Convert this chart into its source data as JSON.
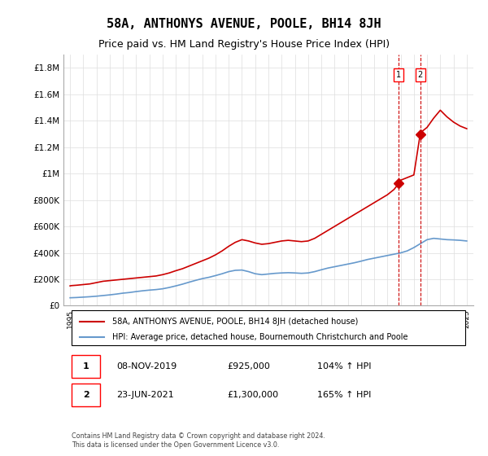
{
  "title": "58A, ANTHONYS AVENUE, POOLE, BH14 8JH",
  "subtitle": "Price paid vs. HM Land Registry's House Price Index (HPI)",
  "title_fontsize": 11,
  "subtitle_fontsize": 9,
  "ylabel_fontsize": 8,
  "xlabel_fontsize": 7.5,
  "ylim": [
    0,
    1900000
  ],
  "xlim_start": 1995,
  "xlim_end": 2026,
  "yticks": [
    0,
    200000,
    400000,
    600000,
    800000,
    1000000,
    1200000,
    1400000,
    1600000,
    1800000
  ],
  "ytick_labels": [
    "£0",
    "£200K",
    "£400K",
    "£600K",
    "£800K",
    "£1M",
    "£1.2M",
    "£1.4M",
    "£1.6M",
    "£1.8M"
  ],
  "xticks": [
    1995,
    1996,
    1997,
    1998,
    1999,
    2000,
    2001,
    2002,
    2003,
    2004,
    2005,
    2006,
    2007,
    2008,
    2009,
    2010,
    2011,
    2012,
    2013,
    2014,
    2015,
    2016,
    2017,
    2018,
    2019,
    2020,
    2021,
    2022,
    2023,
    2024,
    2025
  ],
  "red_color": "#cc0000",
  "blue_color": "#6699cc",
  "dashed_color": "#cc0000",
  "legend_box_color": "#000000",
  "background_color": "#ffffff",
  "grid_color": "#dddddd",
  "transaction1_date": "08-NOV-2019",
  "transaction1_price": "£925,000",
  "transaction1_hpi": "104% ↑ HPI",
  "transaction1_year": 2019.86,
  "transaction1_value": 925000,
  "transaction2_date": "23-JUN-2021",
  "transaction2_price": "£1,300,000",
  "transaction2_hpi": "165% ↑ HPI",
  "transaction2_year": 2021.48,
  "transaction2_value": 1300000,
  "legend_label_red": "58A, ANTHONYS AVENUE, POOLE, BH14 8JH (detached house)",
  "legend_label_blue": "HPI: Average price, detached house, Bournemouth Christchurch and Poole",
  "footnote": "Contains HM Land Registry data © Crown copyright and database right 2024.\nThis data is licensed under the Open Government Licence v3.0.",
  "red_x": [
    1995.0,
    1995.1,
    1995.5,
    1996.0,
    1996.5,
    1997.0,
    1997.5,
    1998.0,
    1998.5,
    1999.0,
    1999.5,
    2000.0,
    2000.5,
    2001.0,
    2001.5,
    2002.0,
    2002.5,
    2003.0,
    2003.5,
    2004.0,
    2004.5,
    2005.0,
    2005.5,
    2006.0,
    2006.5,
    2007.0,
    2007.5,
    2008.0,
    2008.5,
    2009.0,
    2009.5,
    2010.0,
    2010.5,
    2011.0,
    2011.5,
    2012.0,
    2012.5,
    2013.0,
    2013.5,
    2014.0,
    2014.5,
    2015.0,
    2015.5,
    2016.0,
    2016.5,
    2017.0,
    2017.5,
    2018.0,
    2018.5,
    2019.0,
    2019.5,
    2019.86,
    2020.0,
    2020.5,
    2021.0,
    2021.48,
    2021.5,
    2022.0,
    2022.5,
    2023.0,
    2023.5,
    2024.0,
    2024.5,
    2025.0
  ],
  "red_y": [
    150000,
    152000,
    155000,
    160000,
    165000,
    175000,
    185000,
    190000,
    195000,
    200000,
    205000,
    210000,
    215000,
    220000,
    225000,
    235000,
    248000,
    265000,
    280000,
    300000,
    320000,
    340000,
    360000,
    385000,
    415000,
    450000,
    480000,
    500000,
    490000,
    475000,
    465000,
    470000,
    480000,
    490000,
    495000,
    490000,
    485000,
    490000,
    510000,
    540000,
    570000,
    600000,
    630000,
    660000,
    690000,
    720000,
    750000,
    780000,
    810000,
    840000,
    880000,
    925000,
    950000,
    970000,
    990000,
    1300000,
    1310000,
    1350000,
    1420000,
    1480000,
    1430000,
    1390000,
    1360000,
    1340000
  ],
  "blue_x": [
    1995.0,
    1995.5,
    1996.0,
    1996.5,
    1997.0,
    1997.5,
    1998.0,
    1998.5,
    1999.0,
    1999.5,
    2000.0,
    2000.5,
    2001.0,
    2001.5,
    2002.0,
    2002.5,
    2003.0,
    2003.5,
    2004.0,
    2004.5,
    2005.0,
    2005.5,
    2006.0,
    2006.5,
    2007.0,
    2007.5,
    2008.0,
    2008.5,
    2009.0,
    2009.5,
    2010.0,
    2010.5,
    2011.0,
    2011.5,
    2012.0,
    2012.5,
    2013.0,
    2013.5,
    2014.0,
    2014.5,
    2015.0,
    2015.5,
    2016.0,
    2016.5,
    2017.0,
    2017.5,
    2018.0,
    2018.5,
    2019.0,
    2019.5,
    2020.0,
    2020.5,
    2021.0,
    2021.5,
    2022.0,
    2022.5,
    2023.0,
    2023.5,
    2024.0,
    2024.5,
    2025.0
  ],
  "blue_y": [
    60000,
    62000,
    65000,
    68000,
    72000,
    77000,
    82000,
    88000,
    95000,
    100000,
    107000,
    113000,
    118000,
    122000,
    128000,
    138000,
    150000,
    163000,
    178000,
    192000,
    205000,
    215000,
    228000,
    242000,
    258000,
    268000,
    270000,
    258000,
    242000,
    235000,
    240000,
    245000,
    248000,
    250000,
    248000,
    245000,
    248000,
    258000,
    272000,
    285000,
    295000,
    305000,
    315000,
    325000,
    337000,
    350000,
    360000,
    370000,
    380000,
    390000,
    400000,
    415000,
    440000,
    470000,
    500000,
    510000,
    505000,
    500000,
    498000,
    495000,
    490000
  ]
}
